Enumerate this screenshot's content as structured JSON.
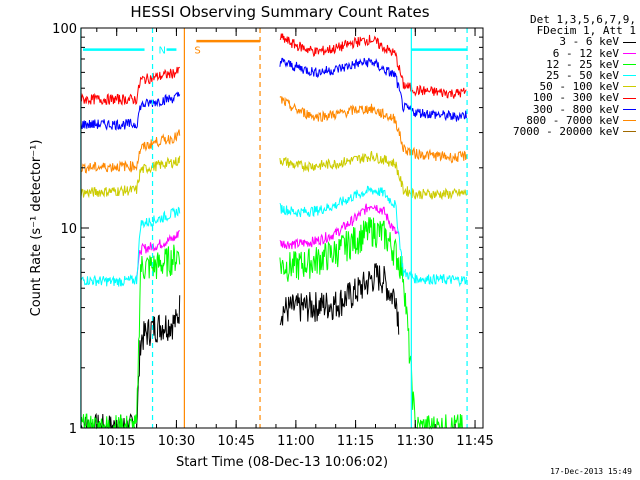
{
  "chart_data": {
    "type": "line",
    "title": "HESSI Observing Summary Count Rates",
    "xlabel": "Start Time (08-Dec-13 10:06:02)",
    "ylabel": "Count Rate (s⁻¹ detector⁻¹)",
    "x_scale": "time",
    "y_scale": "log",
    "xlim": [
      "10:06:02",
      "11:47:00"
    ],
    "ylim": [
      1,
      100
    ],
    "x_ticks": [
      "10:15",
      "10:30",
      "10:45",
      "11:00",
      "11:15",
      "11:30",
      "11:45"
    ],
    "y_ticks": [
      "1",
      "10",
      "100"
    ],
    "grid": false,
    "legend_position": "top-right-outside",
    "legend_header": [
      "Det 1,3,5,6,7,9,",
      "FDecim 1, Att 1"
    ],
    "series": [
      {
        "name": "3 - 6 keV",
        "color": "#000000",
        "x": [
          "10:06",
          "10:20",
          "10:21",
          "10:24",
          "10:27",
          "10:30",
          "10:31",
          "10:55",
          "10:56",
          "11:00",
          "11:05",
          "11:10",
          "11:15",
          "11:20",
          "11:22",
          "11:24",
          "11:25",
          "11:26",
          "11:27"
        ],
        "y": [
          1,
          1,
          2.8,
          3.2,
          3.3,
          3.4,
          4.2,
          0,
          3.9,
          4.0,
          4.1,
          4.2,
          4.8,
          5.8,
          5.6,
          4.6,
          4.8,
          3.2,
          0
        ]
      },
      {
        "name": "6 - 12 keV",
        "color": "#ff00ff",
        "x": [
          "10:20",
          "10:21",
          "10:25",
          "10:30",
          "10:31",
          "10:55",
          "10:56",
          "11:00",
          "11:05",
          "11:10",
          "11:15",
          "11:19",
          "11:22",
          "11:25",
          "11:26",
          "11:27"
        ],
        "y": [
          5.8,
          7.8,
          8.2,
          9.0,
          10.2,
          0,
          8.4,
          8.3,
          8.6,
          9.4,
          11.2,
          13.2,
          12.2,
          9.5,
          9.0,
          0
        ]
      },
      {
        "name": "12 - 25 keV",
        "color": "#00ff00",
        "x": [
          "10:06",
          "10:20",
          "10:21",
          "10:25",
          "10:30",
          "10:31",
          "10:55",
          "10:56",
          "11:00",
          "11:05",
          "11:10",
          "11:15",
          "11:19",
          "11:22",
          "11:25",
          "11:27",
          "11:30",
          "11:42"
        ],
        "y": [
          1,
          1,
          6.4,
          6.5,
          7.2,
          8.0,
          0,
          6.5,
          6.5,
          6.9,
          7.6,
          8.8,
          9.8,
          9.4,
          7.6,
          6.0,
          1,
          1
        ]
      },
      {
        "name": "25 - 50 keV",
        "color": "#00ffff",
        "x": [
          "10:06",
          "10:15",
          "10:20",
          "10:21",
          "10:25",
          "10:30",
          "10:31",
          "10:55",
          "10:56",
          "11:00",
          "11:05",
          "11:10",
          "11:15",
          "11:19",
          "11:22",
          "11:25",
          "11:27",
          "11:30",
          "11:40",
          "11:43"
        ],
        "y": [
          5.5,
          5.4,
          5.5,
          10.5,
          11.0,
          12.0,
          12.5,
          0,
          12.6,
          12.0,
          12.2,
          13.0,
          14.6,
          15.5,
          15.0,
          13.0,
          6.0,
          5.6,
          5.5,
          5.5
        ]
      },
      {
        "name": "50 - 100 keV",
        "color": "#cccc00",
        "x": [
          "10:06",
          "10:20",
          "10:21",
          "10:25",
          "10:30",
          "10:31",
          "10:55",
          "10:56",
          "11:00",
          "11:05",
          "11:10",
          "11:15",
          "11:19",
          "11:22",
          "11:25",
          "11:27",
          "11:30",
          "11:40",
          "11:43"
        ],
        "y": [
          15,
          15.5,
          19.5,
          20.5,
          21.5,
          22,
          0,
          22,
          20.5,
          20.5,
          21,
          22,
          23,
          22,
          21,
          15.5,
          14.8,
          14.8,
          15
        ]
      },
      {
        "name": "100 - 300 keV",
        "color": "#ff0000",
        "x": [
          "10:06",
          "10:20",
          "10:21",
          "10:25",
          "10:30",
          "10:31",
          "10:55",
          "10:56",
          "11:00",
          "11:05",
          "11:10",
          "11:15",
          "11:19",
          "11:22",
          "11:25",
          "11:27",
          "11:30",
          "11:40",
          "11:43"
        ],
        "y": [
          44,
          44,
          55,
          57,
          60,
          62,
          0,
          90,
          82,
          76,
          79,
          85,
          88,
          80,
          74,
          52,
          49,
          47,
          48
        ]
      },
      {
        "name": "300 - 800 keV",
        "color": "#0000ff",
        "x": [
          "10:06",
          "10:20",
          "10:21",
          "10:25",
          "10:30",
          "10:31",
          "10:55",
          "10:56",
          "11:00",
          "11:05",
          "11:10",
          "11:15",
          "11:19",
          "11:22",
          "11:25",
          "11:27",
          "11:30",
          "11:40",
          "11:43"
        ],
        "y": [
          33,
          33,
          41,
          43,
          45,
          47,
          0,
          68,
          64,
          60,
          62,
          66,
          68,
          62,
          58,
          40,
          38,
          36,
          37
        ]
      },
      {
        "name": "800 - 7000 keV",
        "color": "#ff8800",
        "x": [
          "10:06",
          "10:20",
          "10:21",
          "10:25",
          "10:30",
          "10:31",
          "10:55",
          "10:56",
          "11:00",
          "11:05",
          "11:10",
          "11:15",
          "11:19",
          "11:22",
          "11:25",
          "11:27",
          "11:30",
          "11:40",
          "11:43"
        ],
        "y": [
          20,
          20.5,
          25,
          27,
          28.5,
          30,
          0,
          44,
          39,
          36,
          37,
          39,
          39.5,
          37,
          35,
          25,
          23.5,
          22.5,
          23
        ]
      },
      {
        "name": "7000 - 20000 keV",
        "color": "#a06a00",
        "x": [],
        "y": []
      }
    ],
    "annotations": [
      {
        "text": "N",
        "color": "#00ffff",
        "x": "10:24"
      },
      {
        "text": "S",
        "color": "#ff8800",
        "x": "10:33"
      }
    ]
  },
  "timestamp": "17-Dec-2013 15:49"
}
